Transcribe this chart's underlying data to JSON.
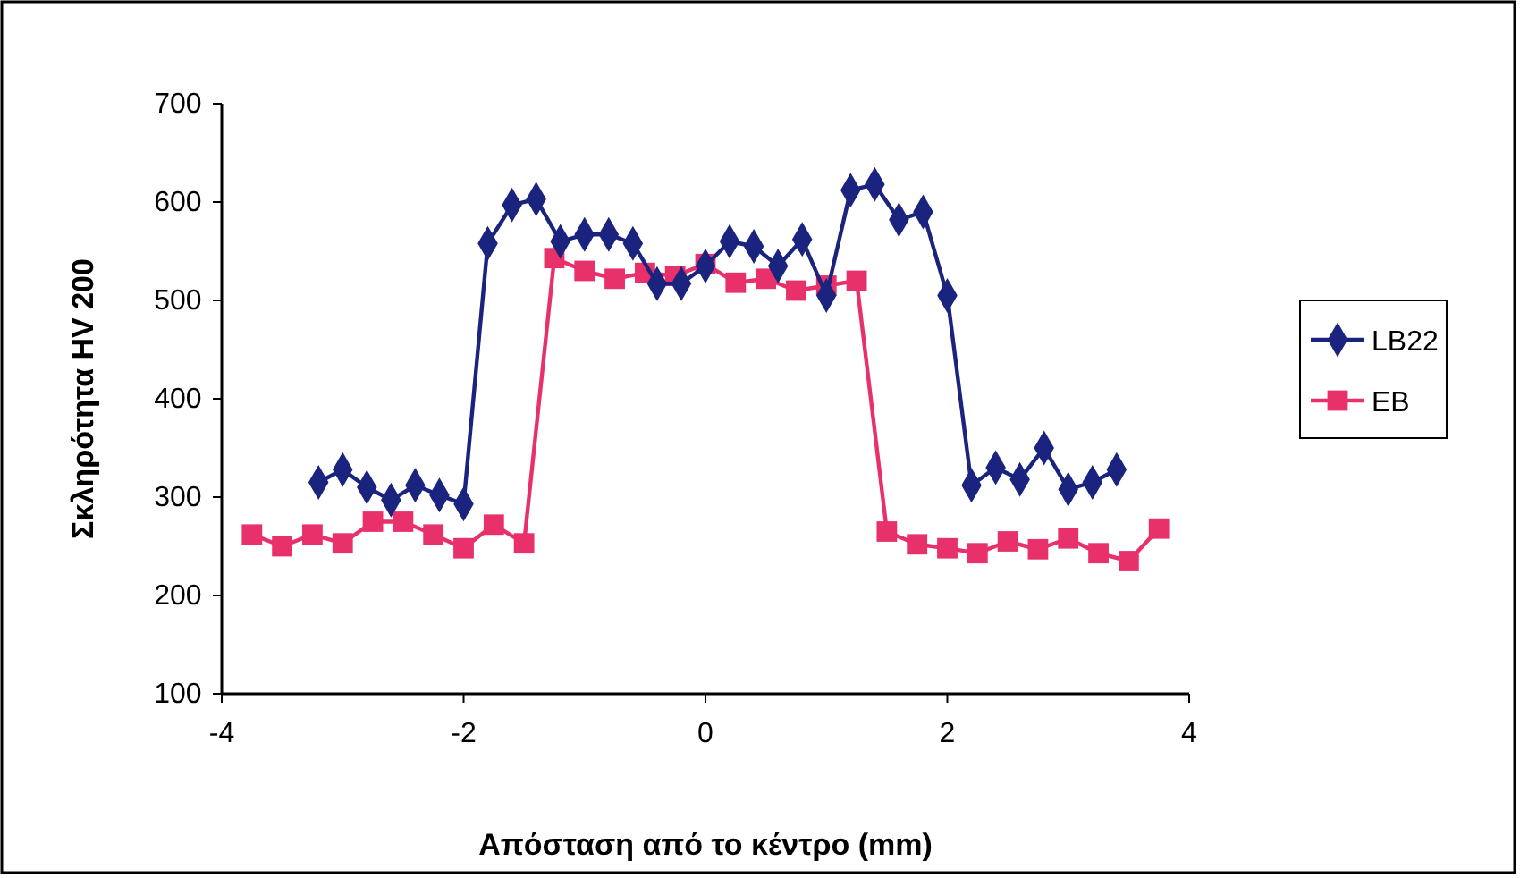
{
  "chart_data": {
    "type": "line",
    "xlabel": "Απόσταση από το κέντρο (mm)",
    "ylabel": "Σκληρότητα HV 200",
    "xlim": [
      -4,
      4
    ],
    "xticks": [
      -4,
      -2,
      0,
      2,
      4
    ],
    "ylim": [
      100,
      700
    ],
    "yticks": [
      100,
      200,
      300,
      400,
      500,
      600,
      700
    ],
    "grid": false,
    "legend": "right",
    "series": [
      {
        "name": "LB22",
        "color": "#1a237e",
        "marker": "diamond",
        "x": [
          -3.2,
          -3.0,
          -2.8,
          -2.6,
          -2.4,
          -2.2,
          -2.0,
          -1.8,
          -1.6,
          -1.4,
          -1.2,
          -1.0,
          -0.8,
          -0.6,
          -0.4,
          -0.2,
          0,
          0.2,
          0.4,
          0.6,
          0.8,
          1.0,
          1.2,
          1.4,
          1.6,
          1.8,
          2.0,
          2.2,
          2.4,
          2.6,
          2.8,
          3.0,
          3.2,
          3.4
        ],
        "values": [
          315,
          328,
          310,
          297,
          312,
          302,
          293,
          558,
          597,
          603,
          560,
          567,
          567,
          558,
          517,
          517,
          535,
          560,
          555,
          535,
          562,
          505,
          612,
          618,
          582,
          590,
          505,
          312,
          330,
          318,
          350,
          308,
          315,
          328
        ]
      },
      {
        "name": "EB",
        "color": "#e8306a",
        "marker": "square",
        "x": [
          -3.75,
          -3.5,
          -3.25,
          -3.0,
          -2.75,
          -2.5,
          -2.25,
          -2.0,
          -1.75,
          -1.5,
          -1.25,
          -1.0,
          -0.75,
          -0.5,
          -0.25,
          0,
          0.25,
          0.5,
          0.75,
          1.0,
          1.25,
          1.5,
          1.75,
          2.0,
          2.25,
          2.5,
          2.75,
          3.0,
          3.25,
          3.5,
          3.75
        ],
        "values": [
          262,
          250,
          262,
          253,
          275,
          275,
          262,
          248,
          272,
          253,
          543,
          530,
          522,
          528,
          525,
          537,
          518,
          522,
          510,
          515,
          520,
          265,
          252,
          248,
          243,
          255,
          247,
          258,
          243,
          235,
          268
        ]
      }
    ]
  }
}
